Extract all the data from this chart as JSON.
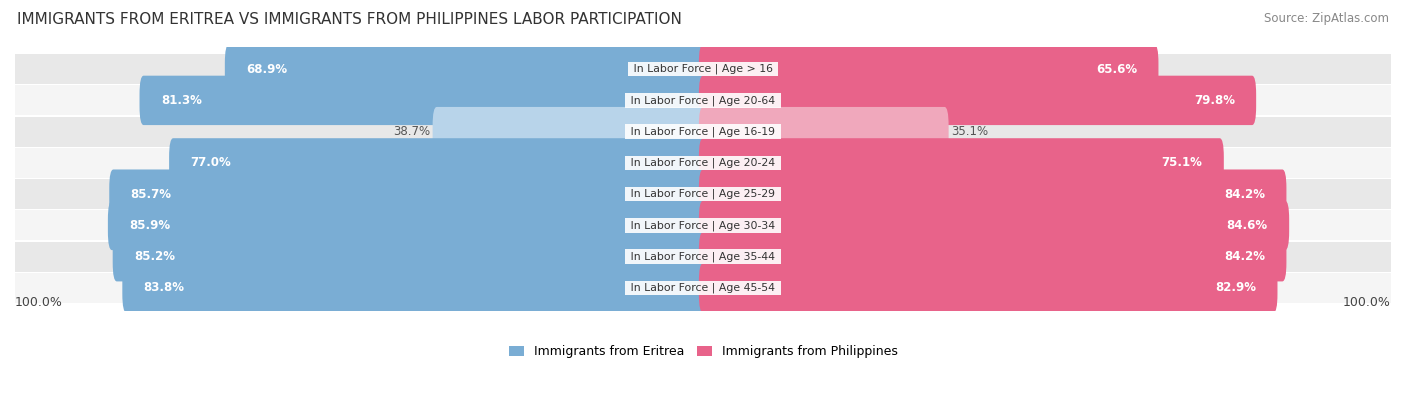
{
  "title": "IMMIGRANTS FROM ERITREA VS IMMIGRANTS FROM PHILIPPINES LABOR PARTICIPATION",
  "source": "Source: ZipAtlas.com",
  "categories": [
    "In Labor Force | Age > 16",
    "In Labor Force | Age 20-64",
    "In Labor Force | Age 16-19",
    "In Labor Force | Age 20-24",
    "In Labor Force | Age 25-29",
    "In Labor Force | Age 30-34",
    "In Labor Force | Age 35-44",
    "In Labor Force | Age 45-54"
  ],
  "eritrea_values": [
    68.9,
    81.3,
    38.7,
    77.0,
    85.7,
    85.9,
    85.2,
    83.8
  ],
  "philippines_values": [
    65.6,
    79.8,
    35.1,
    75.1,
    84.2,
    84.6,
    84.2,
    82.9
  ],
  "eritrea_color": "#7aadd4",
  "eritrea_color_light": "#b8d4ea",
  "philippines_color": "#e8638a",
  "philippines_color_light": "#f0a8bc",
  "row_bg_colors": [
    "#e8e8e8",
    "#f5f5f5"
  ],
  "max_value": 100.0,
  "legend_eritrea": "Immigrants from Eritrea",
  "legend_philippines": "Immigrants from Philippines",
  "title_fontsize": 11,
  "source_fontsize": 8.5,
  "bar_label_fontsize": 8.5,
  "category_fontsize": 7.8,
  "legend_fontsize": 9,
  "bottom_label": "100.0%"
}
